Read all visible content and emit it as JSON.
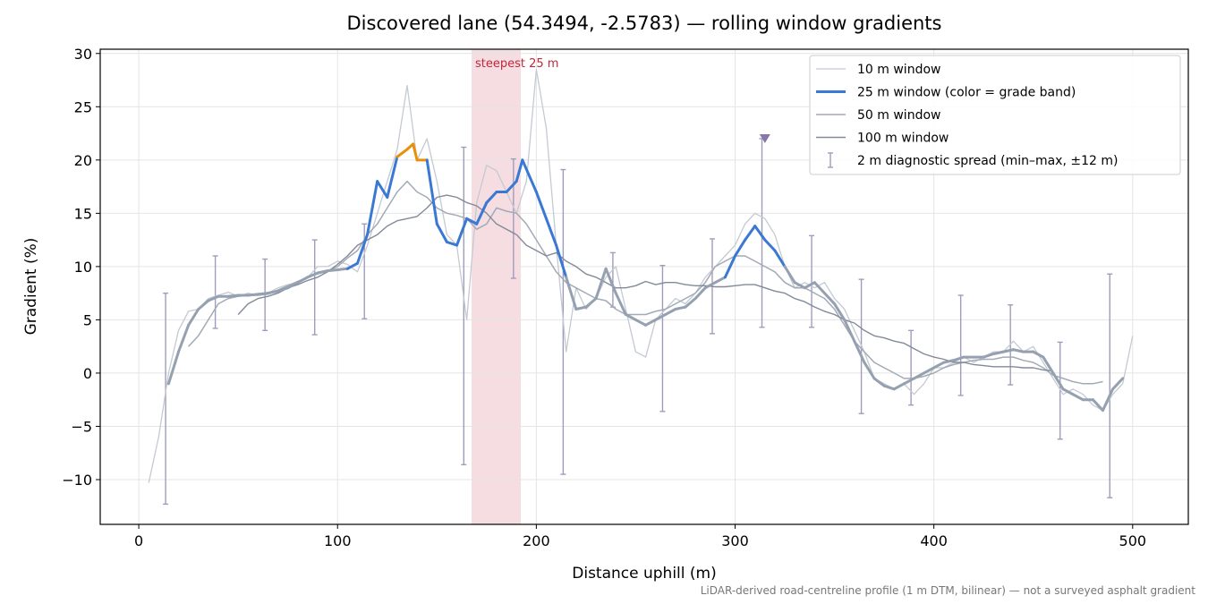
{
  "chart_data": {
    "type": "line",
    "title": "Discovered lane (54.3494, -2.5783) — rolling window gradients",
    "x_label": "Distance uphill (m)",
    "y_label": "Gradient (%)",
    "footnote": "LiDAR-derived road-centreline profile (1 m DTM, bilinear) — not a surveyed asphalt gradient",
    "xlim": [
      -19.4,
      528
    ],
    "ylim": [
      -14.2,
      30.4
    ],
    "xticks": [
      0,
      100,
      200,
      300,
      400,
      500
    ],
    "yticks": [
      {
        "value": -10,
        "label": "−10"
      },
      {
        "value": -5,
        "label": "−5"
      },
      0,
      5,
      10,
      15,
      20,
      25,
      30
    ],
    "grid": true,
    "legend": "upper right",
    "highlight": {
      "xlim": [
        167.4,
        192.2
      ],
      "label": "steepest 25 m",
      "color": "#e8b4bc",
      "label_color": "#c0283c"
    },
    "series": [
      {
        "name": "10 m window",
        "color": "#c4cad2",
        "width": 1.3,
        "x": [
          5,
          10,
          15,
          20,
          25,
          30,
          35,
          40,
          45,
          50,
          55,
          60,
          65,
          70,
          75,
          80,
          85,
          90,
          95,
          100,
          105,
          110,
          115,
          120,
          125,
          130,
          135,
          140,
          145,
          150,
          155,
          160,
          165,
          170,
          175,
          180,
          185,
          190,
          195,
          200,
          205,
          210,
          215,
          220,
          225,
          230,
          235,
          240,
          245,
          250,
          255,
          260,
          265,
          270,
          275,
          280,
          285,
          290,
          295,
          300,
          305,
          310,
          315,
          320,
          325,
          330,
          335,
          340,
          345,
          350,
          355,
          360,
          365,
          370,
          375,
          380,
          385,
          390,
          395,
          400,
          405,
          410,
          415,
          420,
          425,
          430,
          435,
          440,
          445,
          450,
          455,
          460,
          465,
          470,
          475,
          480,
          485,
          490,
          495,
          500
        ],
        "values": [
          -10.3,
          -6,
          0,
          4,
          5.8,
          6,
          7,
          7.3,
          7.6,
          7.2,
          7.5,
          7.3,
          7.5,
          8,
          8.3,
          8.5,
          9,
          10,
          10,
          10.5,
          10.2,
          9.5,
          12,
          15,
          18,
          21,
          27,
          20,
          22,
          18,
          13,
          12,
          5,
          16,
          19.5,
          19,
          17,
          15,
          18,
          28.5,
          23,
          12,
          2,
          8,
          6,
          7,
          9,
          10,
          6,
          2,
          1.5,
          5,
          6,
          7,
          6.5,
          7.5,
          9,
          10,
          11,
          12,
          14,
          15,
          14.5,
          13,
          10,
          8,
          8.5,
          8,
          8.5,
          7,
          6,
          4,
          2,
          -0.5,
          -1,
          -1.5,
          -1,
          -2,
          -1,
          0.5,
          0.5,
          1,
          1.5,
          1,
          1.5,
          2,
          2,
          3,
          2,
          2.5,
          1,
          -0.5,
          -2,
          -1.5,
          -2,
          -3,
          -3.5,
          -2,
          -1,
          3.5
        ]
      },
      {
        "name": "25 m window (color = grade band)",
        "color": "#3a78d4",
        "width": 3,
        "grade_bands": {
          "thresholds": [
            10,
            20
          ],
          "colors": [
            "#95a0b0",
            "#3a78d4",
            "#e8900c"
          ]
        },
        "x": [
          15,
          20,
          25,
          30,
          35,
          40,
          45,
          50,
          55,
          60,
          65,
          70,
          75,
          80,
          85,
          90,
          95,
          100,
          105,
          110,
          115,
          120,
          125,
          130,
          135,
          138,
          140,
          145,
          150,
          155,
          160,
          165,
          170,
          175,
          180,
          185,
          190,
          193,
          200,
          205,
          210,
          215,
          220,
          225,
          230,
          235,
          240,
          245,
          250,
          255,
          260,
          265,
          270,
          275,
          280,
          285,
          290,
          295,
          300,
          305,
          310,
          315,
          320,
          325,
          330,
          335,
          340,
          345,
          350,
          355,
          360,
          365,
          370,
          375,
          380,
          385,
          390,
          395,
          400,
          405,
          410,
          415,
          420,
          425,
          430,
          435,
          440,
          445,
          450,
          455,
          460,
          465,
          470,
          475,
          480,
          485,
          490,
          495
        ],
        "values": [
          -1,
          2,
          4.5,
          6,
          6.8,
          7.2,
          7.2,
          7.3,
          7.3,
          7.4,
          7.5,
          7.7,
          8,
          8.5,
          9,
          9.4,
          9.6,
          9.7,
          9.8,
          10.3,
          13,
          18,
          16.5,
          20.3,
          21,
          21.5,
          20,
          20,
          14,
          12.3,
          12,
          14.5,
          14,
          16,
          17,
          17,
          18,
          20,
          17,
          14.5,
          12,
          9,
          6,
          6.2,
          7,
          9.8,
          7.5,
          5.5,
          5,
          4.5,
          5,
          5.5,
          6,
          6.2,
          7,
          8,
          8.5,
          9,
          11,
          12.5,
          13.8,
          12.5,
          11.5,
          10,
          8.5,
          8,
          8.5,
          7.5,
          6.5,
          5,
          3,
          1,
          -0.5,
          -1.2,
          -1.5,
          -1,
          -0.5,
          0,
          0.5,
          1,
          1.2,
          1.5,
          1.5,
          1.5,
          1.8,
          2,
          2.2,
          2,
          2,
          1.5,
          0,
          -1.5,
          -2,
          -2.5,
          -2.5,
          -3.5,
          -1.5,
          -0.5
        ]
      },
      {
        "name": "50 m window",
        "color": "#a2aab6",
        "width": 1.5,
        "x": [
          25,
          30,
          35,
          40,
          45,
          50,
          55,
          60,
          65,
          70,
          75,
          80,
          85,
          90,
          95,
          100,
          105,
          110,
          115,
          120,
          125,
          130,
          135,
          140,
          145,
          150,
          155,
          160,
          165,
          170,
          175,
          180,
          185,
          190,
          195,
          200,
          205,
          210,
          215,
          220,
          225,
          230,
          235,
          240,
          245,
          250,
          255,
          260,
          265,
          270,
          275,
          280,
          285,
          290,
          295,
          300,
          305,
          310,
          315,
          320,
          325,
          330,
          335,
          340,
          345,
          350,
          355,
          360,
          365,
          370,
          375,
          380,
          385,
          390,
          395,
          400,
          405,
          410,
          415,
          420,
          425,
          430,
          435,
          440,
          445,
          450,
          455,
          460,
          465,
          470,
          475,
          480,
          485
        ],
        "values": [
          2.5,
          3.5,
          5,
          6.5,
          7,
          7.2,
          7.3,
          7.3,
          7.4,
          7.8,
          8.2,
          8.6,
          9,
          9.3,
          9.6,
          10,
          10.8,
          11.5,
          13,
          14,
          15.5,
          17,
          18,
          17,
          16.5,
          15.5,
          15,
          14.8,
          14.5,
          13.5,
          14,
          15.5,
          15.2,
          15,
          14,
          12.5,
          11,
          9.5,
          8.5,
          8,
          7.5,
          7,
          6.8,
          6,
          5.5,
          5.5,
          5.5,
          5.8,
          6,
          6.5,
          7,
          7.5,
          8.5,
          10,
          10.5,
          11,
          11,
          10.5,
          10,
          9.5,
          8.5,
          8,
          8,
          7.5,
          7,
          6,
          4.5,
          3,
          2,
          1,
          0.5,
          0,
          -0.5,
          -0.5,
          -0.3,
          0,
          0.5,
          0.8,
          1,
          1.2,
          1.3,
          1.3,
          1.5,
          1.5,
          1.2,
          1,
          0.5,
          -0.2,
          -0.5,
          -0.8,
          -1,
          -1,
          -0.8
        ]
      },
      {
        "name": "100 m window",
        "color": "#828a9a",
        "width": 1.4,
        "x": [
          50,
          55,
          60,
          65,
          70,
          75,
          80,
          85,
          90,
          95,
          100,
          105,
          110,
          115,
          120,
          125,
          130,
          135,
          140,
          145,
          150,
          155,
          160,
          165,
          170,
          175,
          180,
          185,
          190,
          195,
          200,
          205,
          210,
          215,
          220,
          225,
          230,
          235,
          240,
          245,
          250,
          255,
          260,
          265,
          270,
          275,
          280,
          285,
          290,
          295,
          300,
          305,
          310,
          315,
          320,
          325,
          330,
          335,
          340,
          345,
          350,
          355,
          360,
          365,
          370,
          375,
          380,
          385,
          390,
          395,
          400,
          405,
          410,
          415,
          420,
          425,
          430,
          435,
          440,
          445,
          450,
          455,
          460
        ],
        "values": [
          5.5,
          6.5,
          7,
          7.2,
          7.5,
          8,
          8.3,
          8.7,
          9,
          9.5,
          10.2,
          11,
          12,
          12.5,
          13,
          13.8,
          14.3,
          14.5,
          14.7,
          15.5,
          16.5,
          16.7,
          16.5,
          16,
          15.7,
          15,
          14,
          13.5,
          13,
          12,
          11.5,
          11,
          11.3,
          10.5,
          10,
          9.3,
          9,
          8.5,
          8,
          8,
          8.2,
          8.6,
          8.3,
          8.5,
          8.5,
          8.3,
          8.2,
          8.2,
          8.1,
          8.1,
          8.2,
          8.3,
          8.3,
          8,
          7.7,
          7.5,
          7,
          6.7,
          6.2,
          5.8,
          5.5,
          5,
          4.7,
          4,
          3.5,
          3.3,
          3,
          2.8,
          2.3,
          1.8,
          1.5,
          1.3,
          1,
          1,
          0.8,
          0.7,
          0.6,
          0.6,
          0.6,
          0.5,
          0.5,
          0.3,
          0.2
        ]
      }
    ],
    "spread": {
      "name": "2 m diagnostic spread (min–max, ±12 m)",
      "color": "#a09cbc",
      "x": [
        13.5,
        38.5,
        63.5,
        88.5,
        113.5,
        163.5,
        188.5,
        213.5,
        238.5,
        263.5,
        288.5,
        313.5,
        338.5,
        363.5,
        388.5,
        413.5,
        438.5,
        463.5,
        488.5
      ],
      "low": [
        -12.3,
        4.2,
        4,
        3.6,
        5.1,
        -8.6,
        8.9,
        -9.5,
        6.2,
        -3.6,
        3.7,
        4.3,
        4.3,
        -3.8,
        -3,
        -2.1,
        -1.1,
        -6.2,
        -11.7
      ],
      "high": [
        7.5,
        11,
        10.7,
        12.5,
        14,
        21.2,
        20.1,
        19.1,
        11.3,
        10.1,
        12.6,
        22,
        12.9,
        8.8,
        4,
        7.3,
        6.4,
        2.9,
        9.3
      ]
    },
    "marker": {
      "x": 315,
      "y": 22,
      "color": "#8878a8"
    }
  }
}
